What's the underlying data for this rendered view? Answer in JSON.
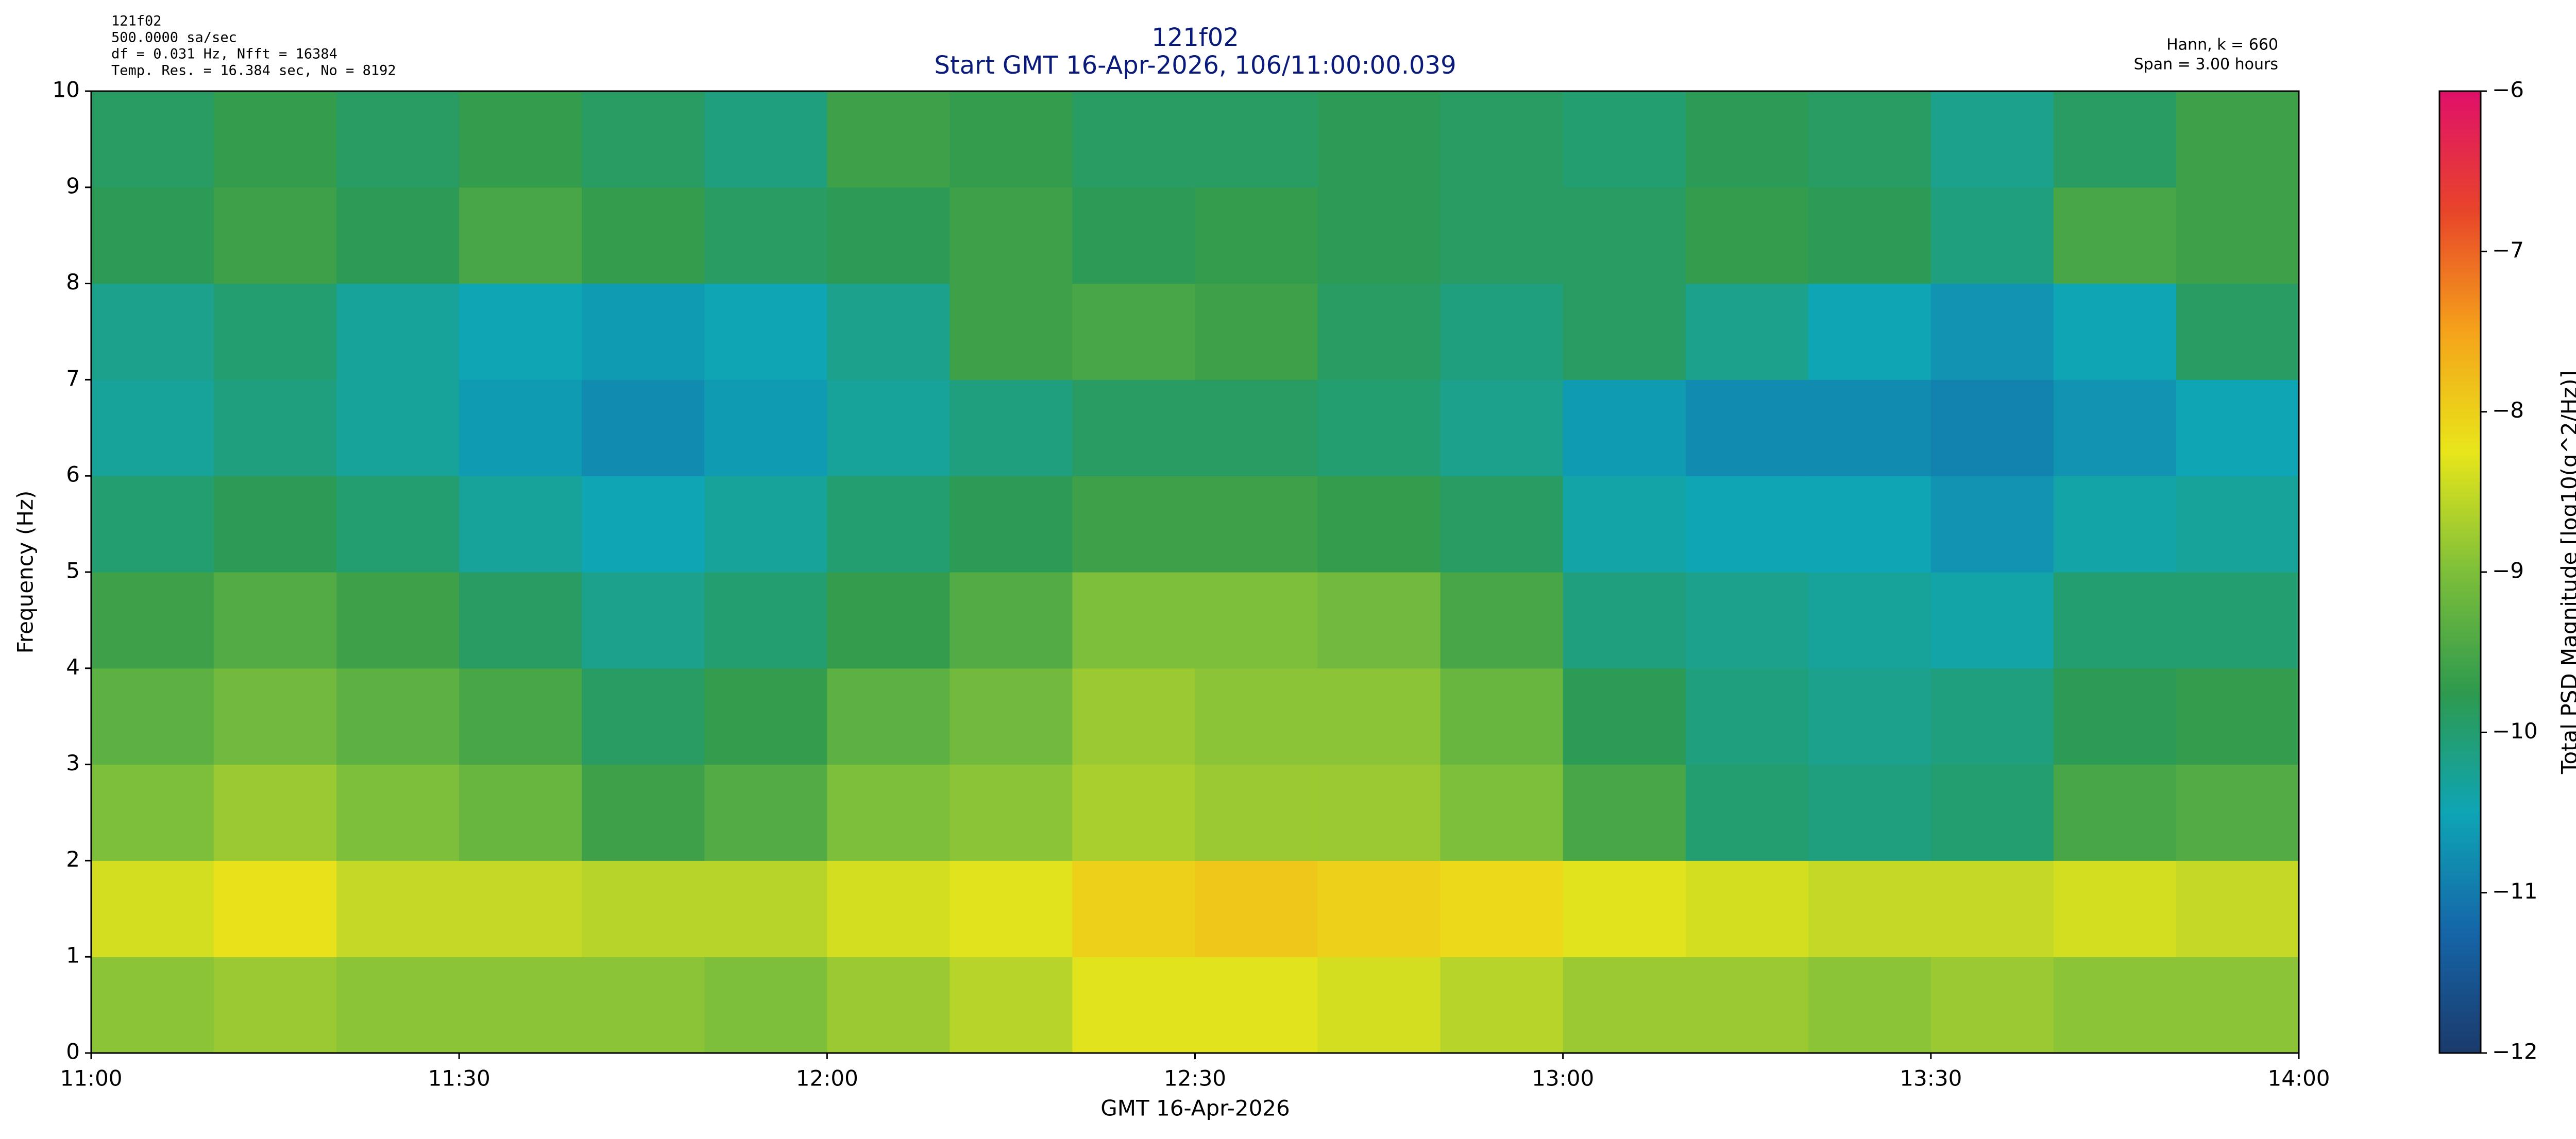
{
  "chart_data": {
    "type": "heatmap",
    "header_lines": [
      "121f02",
      "500.0000 sa/sec",
      "df = 0.031 Hz,  Nfft = 16384",
      "Temp. Res. = 16.384 sec, No = 8192"
    ],
    "title": "121f02",
    "subtitle": "Start GMT 16-Apr-2026, 106/11:00:00.039",
    "info_lines": [
      "Hann, k = 660",
      "Span = 3.00 hours"
    ],
    "xlabel": "GMT 16-Apr-2026",
    "ylabel": "Frequency (Hz)",
    "colorbar_label": "Total PSD Magnitude [log10(g^2/Hz)]",
    "xbins": [
      "11:00",
      "11:10",
      "11:20",
      "11:30",
      "11:40",
      "11:50",
      "12:00",
      "12:10",
      "12:20",
      "12:30",
      "12:40",
      "12:50",
      "13:00",
      "13:10",
      "13:20",
      "13:30",
      "13:40",
      "13:50",
      "14:00"
    ],
    "ybins": [
      0,
      1,
      2,
      3,
      4,
      5,
      6,
      7,
      8,
      9,
      10
    ],
    "z": [
      [
        -8.9,
        -8.8,
        -8.9,
        -8.9,
        -8.9,
        -9.0,
        -8.8,
        -8.6,
        -8.3,
        -8.3,
        -8.4,
        -8.6,
        -8.8,
        -8.8,
        -8.9,
        -8.8,
        -8.9,
        -8.9
      ],
      [
        -8.4,
        -8.2,
        -8.5,
        -8.5,
        -8.6,
        -8.6,
        -8.4,
        -8.3,
        -8.0,
        -7.9,
        -8.0,
        -8.1,
        -8.3,
        -8.4,
        -8.5,
        -8.5,
        -8.4,
        -8.5
      ],
      [
        -9.0,
        -8.8,
        -9.0,
        -9.2,
        -9.6,
        -9.4,
        -9.0,
        -8.9,
        -8.7,
        -8.8,
        -8.8,
        -9.0,
        -9.5,
        -10.0,
        -10.1,
        -10.0,
        -9.5,
        -9.4
      ],
      [
        -9.3,
        -9.1,
        -9.3,
        -9.5,
        -9.9,
        -9.7,
        -9.3,
        -9.1,
        -8.8,
        -8.9,
        -8.9,
        -9.2,
        -9.8,
        -10.1,
        -10.2,
        -10.1,
        -9.8,
        -9.7
      ],
      [
        -9.6,
        -9.4,
        -9.6,
        -9.9,
        -10.2,
        -10.0,
        -9.7,
        -9.4,
        -9.0,
        -9.0,
        -9.1,
        -9.5,
        -10.1,
        -10.2,
        -10.3,
        -10.4,
        -10.0,
        -10.0
      ],
      [
        -10.0,
        -9.8,
        -10.0,
        -10.3,
        -10.5,
        -10.3,
        -10.0,
        -9.8,
        -9.6,
        -9.6,
        -9.7,
        -9.9,
        -10.4,
        -10.5,
        -10.5,
        -10.7,
        -10.4,
        -10.3
      ],
      [
        -10.3,
        -10.1,
        -10.3,
        -10.6,
        -10.8,
        -10.6,
        -10.3,
        -10.1,
        -9.9,
        -9.9,
        -10.0,
        -10.2,
        -10.6,
        -10.8,
        -10.8,
        -10.9,
        -10.7,
        -10.5
      ],
      [
        -10.2,
        -10.0,
        -10.3,
        -10.5,
        -10.6,
        -10.5,
        -10.2,
        -9.6,
        -9.5,
        -9.6,
        -9.9,
        -10.1,
        -9.9,
        -10.2,
        -10.5,
        -10.7,
        -10.5,
        -9.9
      ],
      [
        -9.8,
        -9.6,
        -9.8,
        -9.5,
        -9.7,
        -9.9,
        -9.8,
        -9.6,
        -9.8,
        -9.7,
        -9.8,
        -9.9,
        -9.9,
        -9.7,
        -9.8,
        -10.1,
        -9.5,
        -9.6
      ],
      [
        -9.9,
        -9.7,
        -9.9,
        -9.7,
        -9.9,
        -10.1,
        -9.6,
        -9.7,
        -9.9,
        -9.9,
        -9.8,
        -9.9,
        -10.0,
        -9.8,
        -9.9,
        -10.2,
        -9.9,
        -9.6
      ]
    ],
    "xlim": [
      "11:00",
      "14:00"
    ],
    "xticks": [
      "11:00",
      "11:30",
      "12:00",
      "12:30",
      "13:00",
      "13:30",
      "14:00"
    ],
    "ylim": [
      0,
      10
    ],
    "yticks": [
      0,
      1,
      2,
      3,
      4,
      5,
      6,
      7,
      8,
      9,
      10
    ],
    "zlim": [
      -12,
      -6
    ],
    "zticks": [
      {
        "value": -12,
        "label": "−12"
      },
      {
        "value": -11,
        "label": "−11"
      },
      {
        "value": -10,
        "label": "−10"
      },
      {
        "value": -9,
        "label": "−9"
      },
      {
        "value": -8,
        "label": "−8"
      },
      {
        "value": -7,
        "label": "−7"
      },
      {
        "value": -6,
        "label": "−6"
      }
    ],
    "colormap": [
      "#1b3a6b",
      "#1565a8",
      "#0ea5b5",
      "#2e9a4e",
      "#7dbf3a",
      "#e8e61a",
      "#f5a31a",
      "#e8452a",
      "#e0106a"
    ],
    "grid": false
  }
}
